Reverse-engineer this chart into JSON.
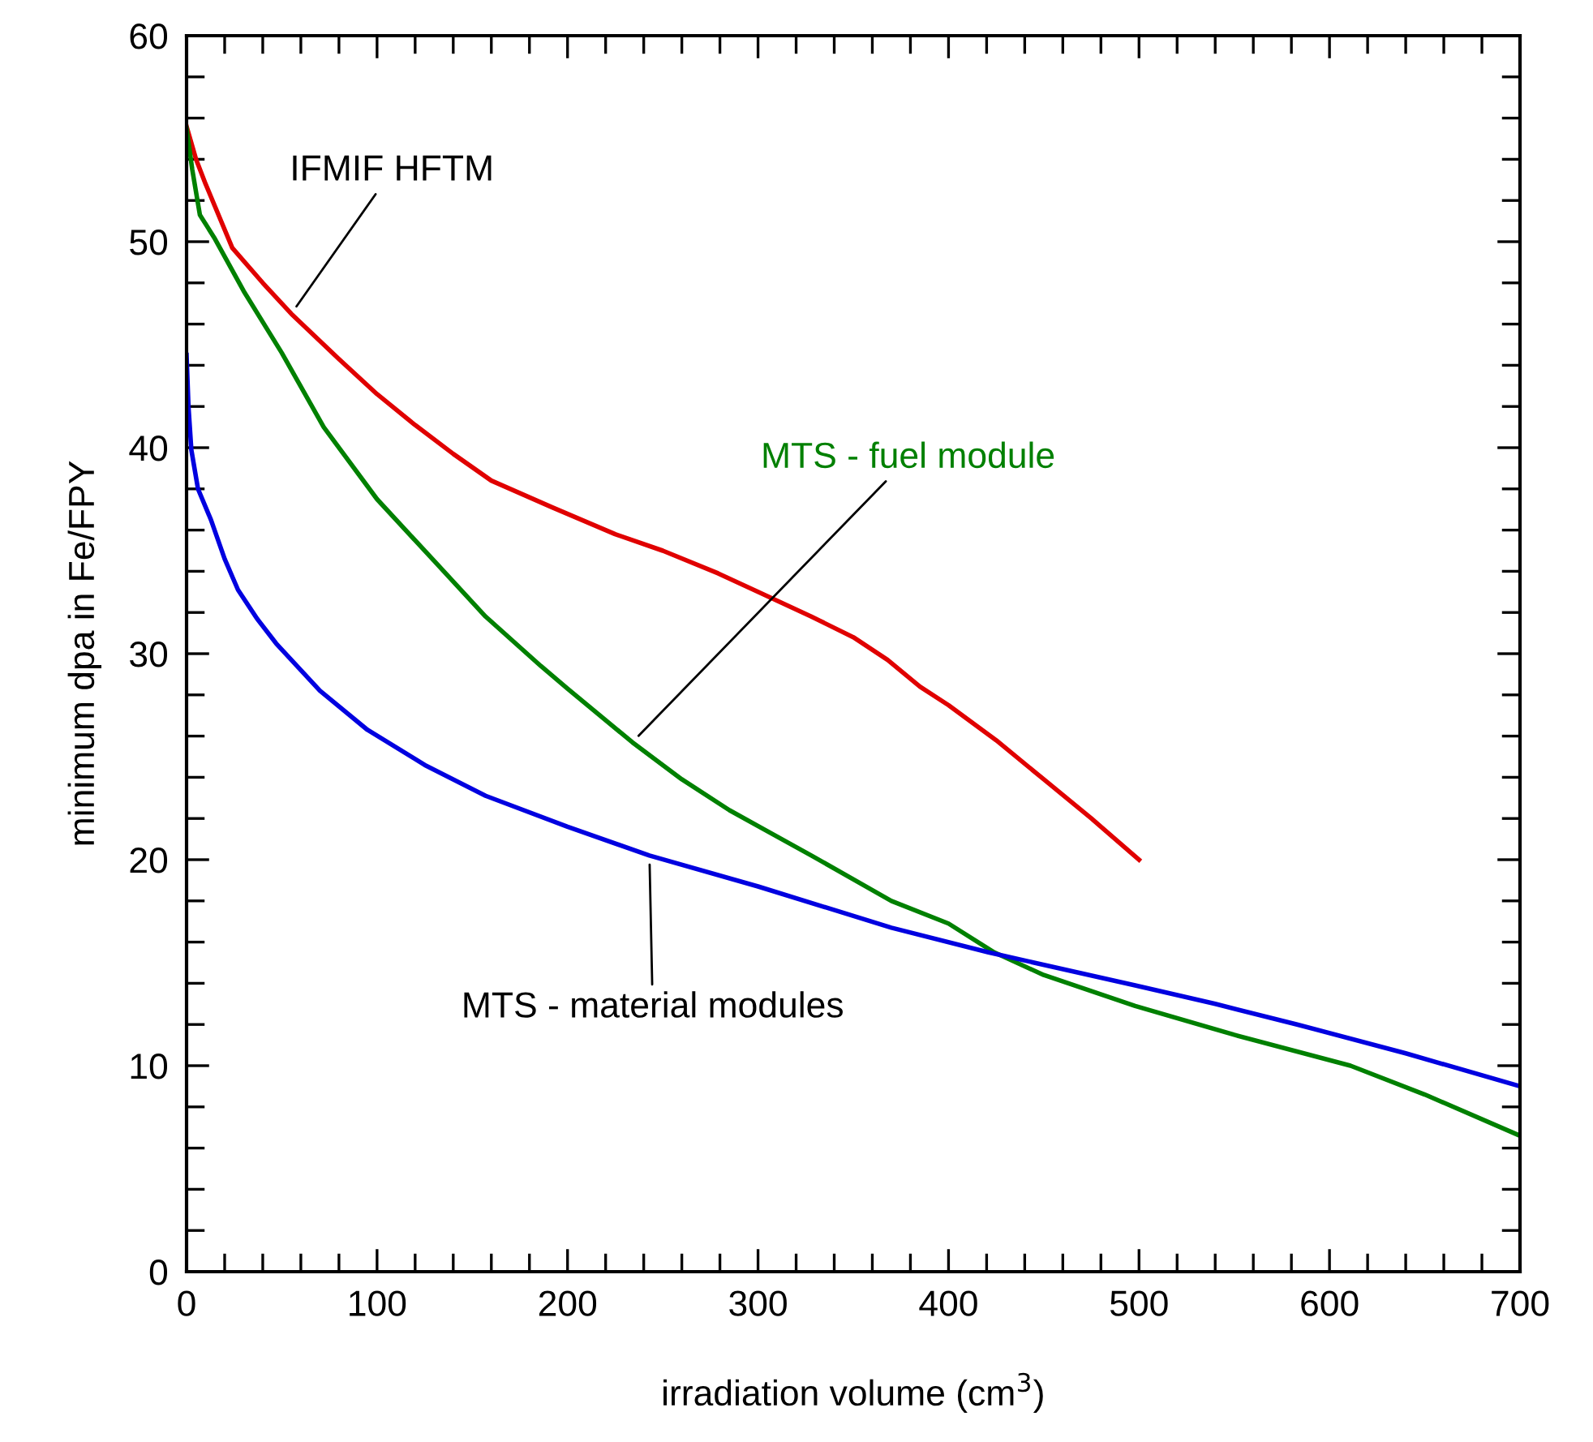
{
  "chart_data": {
    "type": "line",
    "xlabel": "irradiation volume (cm$^{3}$)",
    "ylabel": "minimum dpa in Fe/FPY",
    "xlim": [
      0,
      700
    ],
    "ylim": [
      0,
      60
    ],
    "xticks": [
      0,
      {
        "value": 20,
        "label": null
      },
      {
        "value": 40,
        "label": null
      },
      {
        "value": 60,
        "label": null
      },
      {
        "value": 80,
        "label": null
      },
      100,
      {
        "value": 120,
        "label": null
      },
      {
        "value": 140,
        "label": null
      },
      {
        "value": 160,
        "label": null
      },
      {
        "value": 180,
        "label": null
      },
      200,
      {
        "value": 220,
        "label": null
      },
      {
        "value": 240,
        "label": null
      },
      {
        "value": 260,
        "label": null
      },
      {
        "value": 280,
        "label": null
      },
      300,
      {
        "value": 320,
        "label": null
      },
      {
        "value": 340,
        "label": null
      },
      {
        "value": 360,
        "label": null
      },
      {
        "value": 380,
        "label": null
      },
      400,
      {
        "value": 420,
        "label": null
      },
      {
        "value": 440,
        "label": null
      },
      {
        "value": 460,
        "label": null
      },
      {
        "value": 480,
        "label": null
      },
      500,
      {
        "value": 520,
        "label": null
      },
      {
        "value": 540,
        "label": null
      },
      {
        "value": 560,
        "label": null
      },
      {
        "value": 580,
        "label": null
      },
      600,
      {
        "value": 620,
        "label": null
      },
      {
        "value": 640,
        "label": null
      },
      {
        "value": 660,
        "label": null
      },
      {
        "value": 680,
        "label": null
      },
      700
    ],
    "yticks": [
      0,
      {
        "value": 2,
        "label": null
      },
      {
        "value": 4,
        "label": null
      },
      {
        "value": 6,
        "label": null
      },
      {
        "value": 8,
        "label": null
      },
      10,
      {
        "value": 12,
        "label": null
      },
      {
        "value": 14,
        "label": null
      },
      {
        "value": 16,
        "label": null
      },
      {
        "value": 18,
        "label": null
      },
      20,
      {
        "value": 22,
        "label": null
      },
      {
        "value": 24,
        "label": null
      },
      {
        "value": 26,
        "label": null
      },
      {
        "value": 28,
        "label": null
      },
      30,
      {
        "value": 32,
        "label": null
      },
      {
        "value": 34,
        "label": null
      },
      {
        "value": 36,
        "label": null
      },
      {
        "value": 38,
        "label": null
      },
      40,
      {
        "value": 42,
        "label": null
      },
      {
        "value": 44,
        "label": null
      },
      {
        "value": 46,
        "label": null
      },
      {
        "value": 48,
        "label": null
      },
      50,
      {
        "value": 52,
        "label": null
      },
      {
        "value": 54,
        "label": null
      },
      {
        "value": 56,
        "label": null
      },
      {
        "value": 58,
        "label": null
      },
      60
    ],
    "grid": false,
    "legend": false,
    "marker": "none",
    "line_style": "solid",
    "series": [
      {
        "name": "IFMIF HFTM",
        "color": "#e00000",
        "x": [
          0,
          5,
          10,
          24,
          40,
          55,
          80,
          100,
          120,
          140,
          160,
          192,
          225,
          250,
          279,
          300,
          328,
          350,
          368,
          385,
          400,
          425,
          450,
          475,
          500
        ],
        "values": [
          55.6,
          54.0,
          52.8,
          49.7,
          48.0,
          46.5,
          44.3,
          42.6,
          41.1,
          39.7,
          38.4,
          37.1,
          35.8,
          35.0,
          33.9,
          33.0,
          31.8,
          30.8,
          29.7,
          28.4,
          27.5,
          25.8,
          23.9,
          22.0,
          20.0
        ]
      },
      {
        "name": "MTS - fuel module",
        "color": "#008000",
        "x": [
          0,
          3,
          7,
          14.5,
          30,
          50,
          72,
          100,
          130,
          157,
          186,
          200,
          234,
          260,
          285,
          328,
          370,
          400,
          424,
          450,
          498,
          550,
          611,
          650,
          700
        ],
        "values": [
          55.5,
          53.5,
          51.3,
          50.2,
          47.6,
          44.6,
          41.0,
          37.5,
          34.5,
          31.8,
          29.4,
          28.3,
          25.7,
          23.9,
          22.4,
          20.2,
          18.0,
          16.9,
          15.5,
          14.4,
          12.9,
          11.5,
          10.0,
          8.6,
          6.6
        ]
      },
      {
        "name": "MTS - material modules",
        "color": "#0000e0",
        "x": [
          0,
          1,
          2.5,
          6,
          12.8,
          20,
          27,
          37,
          47,
          70,
          95,
          125,
          157,
          200,
          243,
          300,
          370,
          421,
          498,
          540,
          583,
          640,
          700
        ],
        "values": [
          44.5,
          42.0,
          39.9,
          38.0,
          36.5,
          34.6,
          33.1,
          31.7,
          30.5,
          28.2,
          26.3,
          24.6,
          23.1,
          21.6,
          20.2,
          18.7,
          16.7,
          15.5,
          13.9,
          13.0,
          12.0,
          10.6,
          9.0
        ]
      }
    ]
  }
}
